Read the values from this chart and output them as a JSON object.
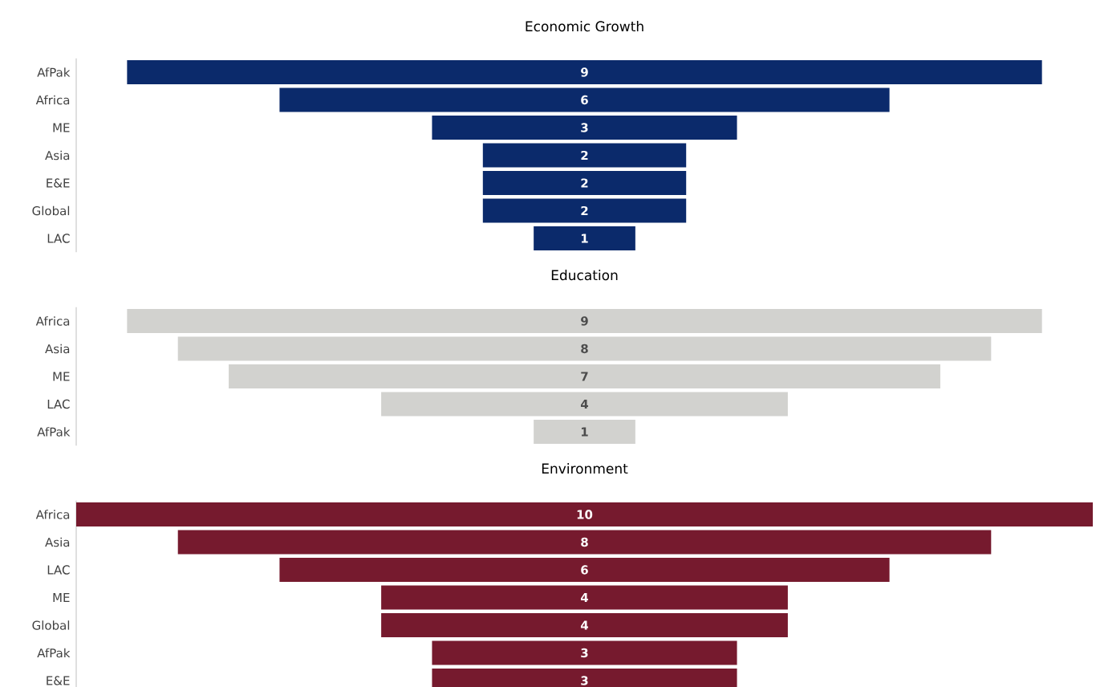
{
  "chart_data": [
    {
      "type": "other",
      "title": "Economic Growth",
      "categories": [
        "AfPak",
        "Africa",
        "ME",
        "Asia",
        "E&E",
        "Global",
        "LAC"
      ],
      "values": [
        9,
        6,
        3,
        2,
        2,
        2,
        1
      ],
      "color": "#0b2a6b",
      "data_labels": true
    },
    {
      "type": "other",
      "title": "Education",
      "categories": [
        "Africa",
        "Asia",
        "ME",
        "LAC",
        "AfPak"
      ],
      "values": [
        9,
        8,
        7,
        4,
        1
      ],
      "color": "#d2d2cf",
      "data_labels": true
    },
    {
      "type": "other",
      "title": "Environment",
      "categories": [
        "Africa",
        "Asia",
        "LAC",
        "ME",
        "Global",
        "AfPak",
        "E&E"
      ],
      "values": [
        10,
        8,
        6,
        4,
        4,
        3,
        3
      ],
      "color": "#761a2e",
      "data_labels": true
    }
  ]
}
